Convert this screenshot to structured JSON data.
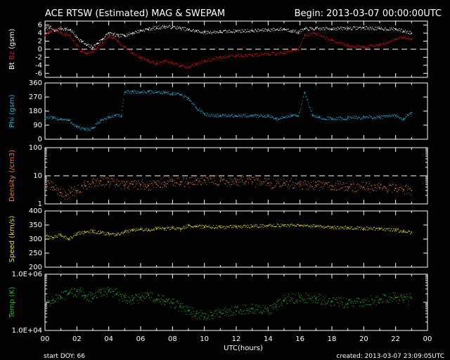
{
  "header": {
    "title": "ACE RTSW (Estimated) MAG & SWEPAM",
    "begin": "Begin: 2013-03-07 00:00:00UTC"
  },
  "footer": {
    "start_doy": "start DOY:  66",
    "created": "created: 2013-03-07 23:09:05UTC",
    "xlabel": "UTC(hours)"
  },
  "colors": {
    "background": "#000000",
    "frame": "#ffffff",
    "bt": "#ffffff",
    "bz": "#e01010",
    "phi": "#20b8e8",
    "density": "#f08020",
    "speed": "#e8e020",
    "temp": "#20c020"
  },
  "chart_data": {
    "type": "scatter",
    "x_ticks": [
      "00",
      "02",
      "04",
      "06",
      "08",
      "10",
      "12",
      "14",
      "16",
      "18",
      "20",
      "22",
      "00"
    ],
    "xlim": [
      0,
      24
    ],
    "panels": [
      {
        "id": "mag",
        "ylabel_parts": [
          {
            "text": "Bt",
            "color": "#ffffff"
          },
          {
            "text": "Bz",
            "color": "#e01010"
          },
          {
            "text": "(gsm)",
            "color": "#ffffff"
          }
        ],
        "ylim": [
          -7,
          7
        ],
        "scale": "linear",
        "tick_values": [
          -6,
          -4,
          -2,
          0,
          2,
          4,
          6
        ],
        "tick_labels": [
          "-6",
          "-4",
          "-2",
          "0",
          "2",
          "4",
          "6"
        ],
        "dashed_ref": 0,
        "series": [
          {
            "color": "#ffffff",
            "x": [
              0,
              0.3,
              0.6,
              1,
              1.3,
              1.6,
              2,
              2.3,
              2.6,
              3,
              3.3,
              3.6,
              4,
              4.3,
              4.6,
              5,
              5.5,
              6,
              6.5,
              7,
              7.5,
              8,
              8.5,
              9,
              9.5,
              10,
              11,
              12,
              13,
              14,
              15,
              15.5,
              15.9,
              16.3,
              17,
              18,
              19,
              20,
              21,
              22,
              22.5,
              23
            ],
            "y": [
              5,
              5.5,
              4.5,
              5.2,
              5,
              4.8,
              3,
              2,
              1,
              0.5,
              1.5,
              2.5,
              4,
              3.6,
              3.3,
              3.5,
              4,
              4.6,
              5,
              5.3,
              5.6,
              5.5,
              5.2,
              4.8,
              4.5,
              4.2,
              4.3,
              4.5,
              4.6,
              4.8,
              5,
              4.6,
              4.2,
              5,
              5.1,
              5.1,
              5.2,
              5.3,
              5.1,
              5,
              4.5,
              4
            ]
          },
          {
            "color": "#e01010",
            "x": [
              0,
              0.3,
              0.6,
              1,
              1.3,
              1.6,
              2,
              2.3,
              2.6,
              3,
              3.3,
              3.6,
              4,
              4.3,
              4.6,
              5,
              5.5,
              6,
              6.5,
              7,
              7.5,
              8,
              8.5,
              9,
              9.5,
              10,
              11,
              12,
              13,
              14,
              15,
              15.5,
              15.9,
              16.3,
              17,
              18,
              19,
              20,
              21,
              22,
              22.5,
              23
            ],
            "y": [
              3.5,
              4.2,
              4.8,
              4,
              3.5,
              3.2,
              1,
              -0.5,
              -1,
              -0.5,
              0.5,
              1.5,
              3,
              2.8,
              2,
              0.5,
              -1,
              -2,
              -3,
              -3.5,
              -3,
              -3.5,
              -4.2,
              -4.5,
              -3.6,
              -3,
              -2,
              -1.5,
              -1.5,
              -1.2,
              -1,
              -0.5,
              -0.2,
              3.5,
              3.8,
              2.2,
              1,
              0.5,
              1,
              2.5,
              3,
              2.5
            ]
          }
        ]
      },
      {
        "id": "phi",
        "ylabel_parts": [
          {
            "text": "Phi (gsm)",
            "color": "#20b8e8"
          }
        ],
        "ylim": [
          0,
          360
        ],
        "scale": "linear",
        "tick_values": [
          0,
          90,
          180,
          270,
          360
        ],
        "tick_labels": [
          "0",
          "90",
          "180",
          "270",
          "360"
        ],
        "series": [
          {
            "color": "#20b8e8",
            "x": [
              0,
              0.5,
              1,
              1.5,
              2,
              2.5,
              3,
              3.5,
              4,
              4.4,
              4.8,
              5,
              5.5,
              6,
              6.5,
              7,
              7.5,
              8,
              8.5,
              9,
              9.5,
              10,
              11,
              12,
              13,
              14,
              14.5,
              15,
              15.5,
              15.9,
              16.3,
              16.8,
              17.2,
              18,
              19,
              20,
              21,
              22,
              22.5,
              23
            ],
            "y": [
              140,
              135,
              130,
              120,
              80,
              60,
              70,
              120,
              140,
              150,
              150,
              300,
              305,
              300,
              305,
              300,
              300,
              290,
              285,
              260,
              200,
              160,
              150,
              150,
              150,
              150,
              130,
              140,
              150,
              150,
              300,
              150,
              140,
              130,
              135,
              140,
              140,
              150,
              130,
              170
            ]
          }
        ]
      },
      {
        "id": "density",
        "ylabel_parts": [
          {
            "text": "Density (/cm3)",
            "color": "#f08020"
          }
        ],
        "ylim": [
          1,
          100
        ],
        "scale": "log",
        "tick_values": [
          1,
          2,
          3,
          4,
          5,
          6,
          7,
          8,
          9,
          10,
          20,
          30,
          40,
          50,
          60,
          70,
          80,
          90,
          100
        ],
        "tick_labels": [
          "1",
          "",
          "",
          "",
          "",
          "",
          "",
          "",
          "",
          "10",
          "",
          "",
          "",
          "",
          "",
          "",
          "",
          "",
          "100"
        ],
        "major_ticks": [
          1,
          10,
          100
        ],
        "dashed_ref": 10,
        "series": [
          {
            "color": "#f08020",
            "x": [
              0,
              0.5,
              1,
              1.3,
              1.6,
              2,
              2.5,
              3,
              3.5,
              4,
              4.5,
              5,
              5.5,
              6,
              6.5,
              7,
              7.5,
              8,
              8.5,
              9,
              9.5,
              10,
              11,
              12,
              13,
              14,
              15,
              16,
              17,
              18,
              19,
              20,
              21,
              22,
              22.5,
              23
            ],
            "y": [
              5,
              4,
              2.5,
              2,
              2.5,
              3,
              4.5,
              6,
              6.5,
              6,
              5,
              4.5,
              5,
              5,
              4.5,
              5,
              6,
              6.5,
              6,
              5.5,
              7,
              7,
              6.5,
              6,
              6,
              5.5,
              5.5,
              5,
              4.5,
              4.5,
              4,
              4,
              3.8,
              3.5,
              3.2,
              3
            ]
          }
        ]
      },
      {
        "id": "speed",
        "ylabel_parts": [
          {
            "text": "Speed (km/s)",
            "color": "#e8e020"
          }
        ],
        "ylim": [
          200,
          400
        ],
        "scale": "linear",
        "tick_values": [
          200,
          250,
          300,
          350,
          400
        ],
        "tick_labels": [
          "200",
          "250",
          "300",
          "350",
          "400"
        ],
        "series": [
          {
            "color": "#e8e020",
            "x": [
              0,
              0.5,
              1,
              1.5,
              2,
              2.5,
              3,
              3.5,
              4,
              4.5,
              5,
              5.5,
              6,
              6.5,
              7,
              7.5,
              8,
              8.5,
              9,
              9.5,
              10,
              11,
              12,
              13,
              14,
              15,
              16,
              17,
              18,
              19,
              20,
              21,
              22,
              22.5,
              23
            ],
            "y": [
              310,
              305,
              315,
              300,
              320,
              325,
              328,
              322,
              318,
              315,
              325,
              330,
              335,
              332,
              338,
              336,
              340,
              335,
              348,
              345,
              345,
              342,
              345,
              345,
              348,
              350,
              347,
              345,
              343,
              340,
              338,
              335,
              333,
              327,
              325
            ]
          }
        ]
      },
      {
        "id": "temp",
        "ylabel_parts": [
          {
            "text": "Temp (K)",
            "color": "#20c020"
          }
        ],
        "ylim": [
          10000,
          1000000
        ],
        "scale": "log",
        "tick_values": [
          10000,
          20000,
          30000,
          40000,
          50000,
          60000,
          70000,
          80000,
          90000,
          100000,
          200000,
          300000,
          400000,
          500000,
          600000,
          700000,
          800000,
          900000,
          1000000
        ],
        "tick_labels": [
          "1.0E+04",
          "",
          "",
          "",
          "",
          "",
          "",
          "",
          "",
          "",
          "",
          "",
          "",
          "",
          "",
          "",
          "",
          "",
          "1.0E+06"
        ],
        "major_ticks": [
          10000,
          100000,
          1000000
        ],
        "series": [
          {
            "color": "#20c020",
            "x": [
              0,
              0.5,
              1,
              1.5,
              2,
              2.5,
              3,
              3.5,
              4,
              4.5,
              5,
              5.5,
              6,
              6.5,
              7,
              7.5,
              8,
              8.5,
              9,
              9.5,
              10,
              10.5,
              11,
              12,
              13,
              14,
              14.5,
              15,
              16,
              17,
              18,
              19,
              20,
              21,
              22,
              22.5,
              23
            ],
            "y": [
              100000,
              120000,
              150000,
              200000,
              250000,
              180000,
              140000,
              220000,
              250000,
              200000,
              150000,
              120000,
              150000,
              180000,
              130000,
              110000,
              90000,
              70000,
              50000,
              40000,
              30000,
              35000,
              45000,
              50000,
              60000,
              50000,
              70000,
              120000,
              150000,
              140000,
              110000,
              90000,
              100000,
              130000,
              150000,
              120000,
              140000
            ]
          }
        ]
      }
    ]
  }
}
